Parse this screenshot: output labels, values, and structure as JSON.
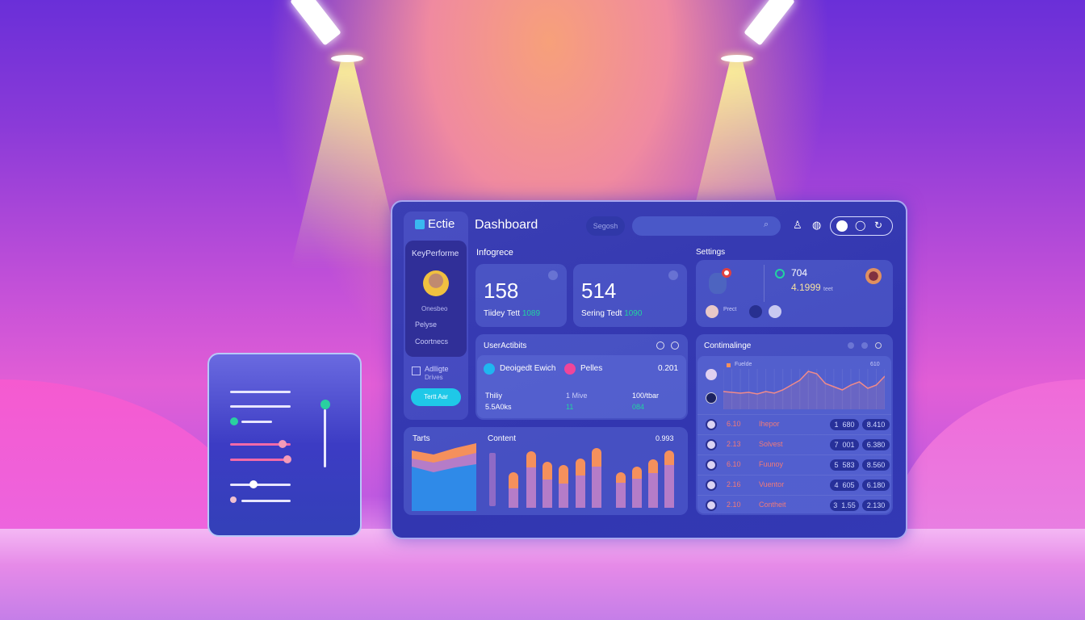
{
  "app": {
    "logo": "Ectie",
    "title": "Dashboard",
    "search_button": "Segosh",
    "search_placeholder": ""
  },
  "sidebar": {
    "section": "KeyPerforme",
    "items": [
      {
        "label": "Onesbeo"
      },
      {
        "label": "Pelyse"
      },
      {
        "label": "Coortnecs"
      }
    ],
    "extra": {
      "line1": "Adlligte",
      "line2": "Drives"
    },
    "cta": "Tertt Aar"
  },
  "infogrece": {
    "title": "Infogrece",
    "cards": [
      {
        "value": "158",
        "label": "Tiidey Tett",
        "delta": "1089"
      },
      {
        "value": "514",
        "label": "Sering Tedt",
        "delta": "1090"
      }
    ]
  },
  "settings": {
    "title": "Settings",
    "count": "704",
    "amount": "4.1999",
    "unit": "teet",
    "user": "Prect"
  },
  "user_activity": {
    "title": "UserActibits",
    "legend": [
      {
        "label": "Deoigedt Ewich",
        "color": "#1fb6f0"
      },
      {
        "label": "Pelles",
        "color": "#f0459a"
      }
    ],
    "total": "0.201",
    "stats": [
      {
        "label": "Thiliy",
        "value": "5.5A0ks"
      },
      {
        "label": "1 Mive",
        "value": "11"
      },
      {
        "label": "100/tbar",
        "value": "084"
      }
    ]
  },
  "tarts": {
    "title": "Tarts"
  },
  "content": {
    "title": "Content",
    "value": "0.993"
  },
  "contimalinge": {
    "title": "Contimalinge",
    "legend": "Fuelde",
    "max_label": "610",
    "rows": [
      {
        "v": "6.10",
        "name": "Ihepor",
        "a": "1",
        "b": "680",
        "c": "8.410"
      },
      {
        "v": "2.13",
        "name": "Solvest",
        "a": "7",
        "b": "001",
        "c": "6.380"
      },
      {
        "v": "6.10",
        "name": "Fuunoy",
        "a": "5",
        "b": "583",
        "c": "8.560"
      },
      {
        "v": "2.16",
        "name": "Vuentor",
        "a": "4",
        "b": "605",
        "c": "6.180"
      },
      {
        "v": "2.10",
        "name": "Contheit",
        "a": "3",
        "b": "1.55",
        "c": "2.130"
      }
    ]
  },
  "colors": {
    "accent": "#1fc8e8",
    "positive": "#22d3a0",
    "bar_top": "#f5905c",
    "bar_body": "#b57cc8",
    "line": "#f08a8a",
    "highlight": "#f4d84a"
  },
  "chart_data": [
    {
      "type": "bar",
      "title": "Content",
      "stacked": true,
      "categories": [
        "1",
        "2",
        "3",
        "4",
        "5",
        "6",
        "7",
        "8",
        "9",
        "10"
      ],
      "series": [
        {
          "values": [
            24,
            50,
            35,
            30,
            40,
            51,
            31,
            36,
            43,
            53
          ]
        },
        {
          "values": [
            20,
            20,
            22,
            23,
            21,
            23,
            13,
            15,
            17,
            18
          ]
        }
      ]
    },
    {
      "type": "line",
      "title": "",
      "values": [
        22,
        21,
        20,
        21,
        19,
        22,
        20,
        24,
        30,
        36,
        47,
        44,
        32,
        28,
        24,
        30,
        34,
        26,
        30,
        41
      ]
    },
    {
      "type": "area",
      "title": "Tarts",
      "series": [
        {
          "values": [
            55,
            48,
            54,
            58
          ]
        },
        {
          "values": [
            10,
            12,
            12,
            14
          ]
        },
        {
          "values": [
            10,
            10,
            12,
            12
          ]
        }
      ]
    }
  ]
}
